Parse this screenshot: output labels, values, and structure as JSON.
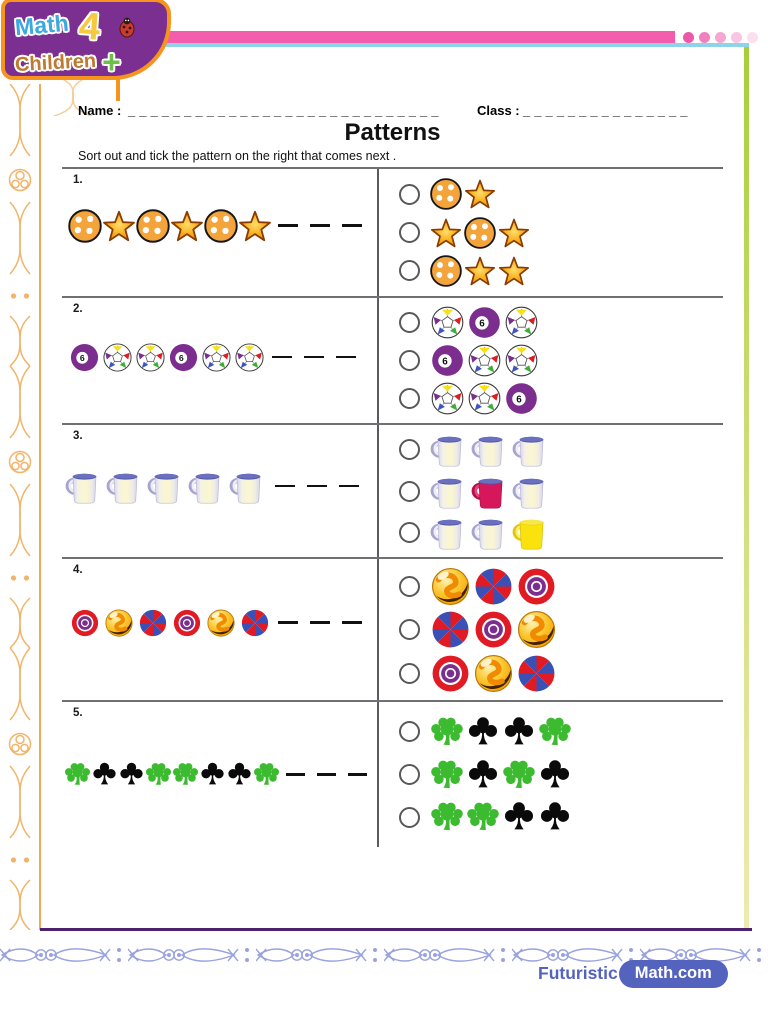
{
  "logo": {
    "word1": "Math",
    "number": "4",
    "word2": "Children",
    "plus": "+"
  },
  "header": {
    "name_label": "Name :",
    "name_line": "____________________________",
    "class_label": "Class :",
    "class_line": "_______________",
    "title": "Patterns",
    "instruction": "Sort out and tick the pattern on the right that comes next ."
  },
  "icon_glossary": {
    "polka-ball": "orange ball with white dots",
    "gold-star": "gold star",
    "six-ball": "purple billiard ball number 6",
    "soccer-ball": "multicolor soccer ball",
    "mug-white": "white mug with blue rim",
    "mug-red": "red mug with blue rim",
    "mug-yellow": "yellow mug",
    "target-ball": "red and purple bullseye ball",
    "marble-ball": "yellow marble with orange swirl",
    "pinwheel-ball": "red and blue pinwheel ball",
    "shamrock": "green shamrock",
    "club": "black club",
    "dash": "answer blank"
  },
  "questions": [
    {
      "number": "1.",
      "sequence": [
        "polka-ball",
        "gold-star",
        "polka-ball",
        "gold-star",
        "polka-ball",
        "gold-star",
        "dash",
        "dash",
        "dash"
      ],
      "options": [
        {
          "items": [
            "polka-ball",
            "gold-star"
          ]
        },
        {
          "items": [
            "gold-star",
            "polka-ball",
            "gold-star"
          ]
        },
        {
          "items": [
            "polka-ball",
            "gold-star",
            "gold-star"
          ]
        }
      ]
    },
    {
      "number": "2.",
      "sequence": [
        "six-ball",
        "soccer-ball",
        "soccer-ball",
        "six-ball",
        "soccer-ball",
        "soccer-ball",
        "dash",
        "dash",
        "dash"
      ],
      "options": [
        {
          "items": [
            "soccer-ball",
            "six-ball",
            "soccer-ball"
          ]
        },
        {
          "items": [
            "six-ball",
            "soccer-ball",
            "soccer-ball"
          ]
        },
        {
          "items": [
            "soccer-ball",
            "soccer-ball",
            "six-ball"
          ]
        }
      ]
    },
    {
      "number": "3.",
      "sequence": [
        "mug-white",
        "mug-white",
        "mug-white",
        "mug-white",
        "mug-white",
        "dash",
        "dash",
        "dash"
      ],
      "options": [
        {
          "items": [
            "mug-white",
            "mug-white",
            "mug-white"
          ]
        },
        {
          "items": [
            "mug-white",
            "mug-red",
            "mug-white"
          ]
        },
        {
          "items": [
            "mug-white",
            "mug-white",
            "mug-yellow"
          ]
        }
      ]
    },
    {
      "number": "4.",
      "sequence": [
        "target-ball",
        "marble-ball",
        "pinwheel-ball",
        "target-ball",
        "marble-ball",
        "pinwheel-ball",
        "dash",
        "dash",
        "dash"
      ],
      "options": [
        {
          "items": [
            "marble-ball",
            "pinwheel-ball",
            "target-ball"
          ]
        },
        {
          "items": [
            "pinwheel-ball",
            "target-ball",
            "marble-ball"
          ]
        },
        {
          "items": [
            "target-ball",
            "marble-ball",
            "pinwheel-ball"
          ]
        }
      ]
    },
    {
      "number": "5.",
      "sequence": [
        "shamrock",
        "club",
        "club",
        "shamrock",
        "shamrock",
        "club",
        "club",
        "shamrock",
        "dash",
        "dash",
        "dash"
      ],
      "options": [
        {
          "items": [
            "shamrock",
            "club",
            "club",
            "shamrock"
          ]
        },
        {
          "items": [
            "shamrock",
            "club",
            "shamrock",
            "club"
          ]
        },
        {
          "items": [
            "shamrock",
            "shamrock",
            "club",
            "club"
          ]
        }
      ]
    }
  ],
  "footer": {
    "brand_prefix": "Futuristic",
    "brand_pill": "Math.com"
  },
  "colors": {
    "logo_purple": "#7B2F90",
    "logo_orange": "#F7941E",
    "pink_bar": "#F45CAC",
    "cyan_line": "#8FD3E8",
    "green_line": "#A6CE39",
    "gold_ornament": "#ECAC56",
    "divider_gray": "#6E7072",
    "bottom_purple": "#4D2170",
    "bottom_ornament": "#9AA3DE",
    "brand_blue": "#5463BE"
  }
}
